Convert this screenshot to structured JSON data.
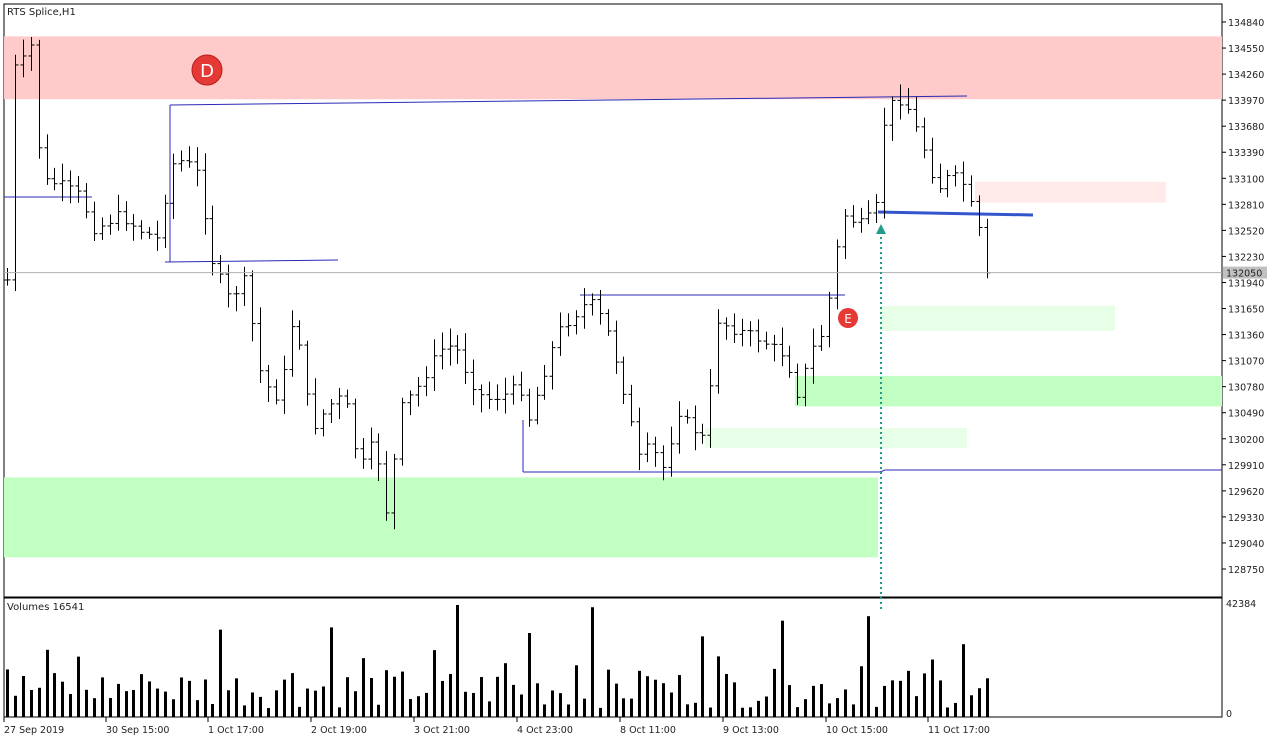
{
  "window": {
    "title": "RTS Splice,H1"
  },
  "colors": {
    "zone_red": "#ffcaca",
    "zone_red_light": "#ffe9e9",
    "zone_green": "#c2ffc2",
    "zone_green_light": "#e6ffe6",
    "level_line": "#2a2ab8",
    "level_line_bold": "#3355cc",
    "arrow": "#1f9c8c",
    "marker": "#e53935",
    "bars": "#000000"
  },
  "markers": [
    {
      "label": "D"
    },
    {
      "label": "E"
    }
  ],
  "chart_data": [
    {
      "type": "ohlc",
      "title": "RTS Splice,H1",
      "y_ticks": [
        134840,
        134550,
        134260,
        133970,
        133680,
        133390,
        133100,
        132810,
        132520,
        132230,
        131940,
        131650,
        131360,
        131070,
        130780,
        130490,
        130200,
        129910,
        129620,
        129330,
        129040,
        128750
      ],
      "ylim": [
        128400,
        135050
      ],
      "current_price_label": "132050",
      "current_price": 132050,
      "grid": false,
      "zones": [
        {
          "kind": "supply",
          "from": 133980,
          "to": 134680
        },
        {
          "kind": "supply-light",
          "from": 132830,
          "to": 133060
        },
        {
          "kind": "demand-light",
          "from": 131400,
          "to": 131680
        },
        {
          "kind": "demand",
          "from": 130560,
          "to": 130900
        },
        {
          "kind": "demand-light",
          "from": 130100,
          "to": 130320
        },
        {
          "kind": "demand",
          "from": 128880,
          "to": 129770
        }
      ],
      "levels": [
        133750,
        132900,
        132230,
        131770,
        129870,
        132700
      ]
    },
    {
      "type": "bar",
      "title": "Volumes 16541",
      "y_ticks": [
        42384,
        0
      ],
      "ylim": [
        0,
        42384
      ],
      "x_tick_labels": [
        "27 Sep 2019",
        "30 Sep 15:00",
        "1 Oct 17:00",
        "2 Oct 19:00",
        "3 Oct 21:00",
        "4 Oct 23:00",
        "8 Oct 11:00",
        "9 Oct 13:00",
        "10 Oct 15:00",
        "11 Oct 17:00"
      ]
    }
  ]
}
